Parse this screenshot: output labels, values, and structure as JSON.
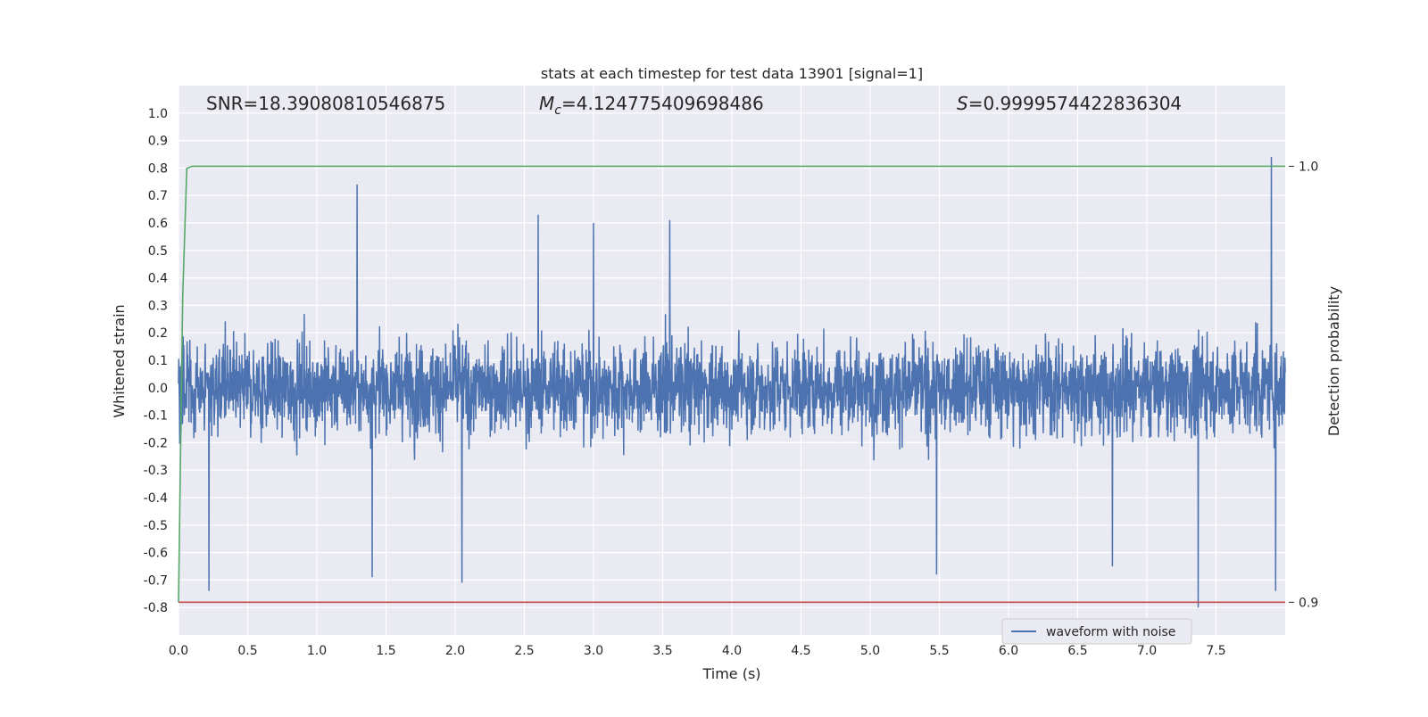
{
  "chart_data": {
    "type": "line",
    "title": "stats at each timestep for test data 13901 [signal=1]",
    "xlabel": "Time (s)",
    "ylabel": "Whitened strain",
    "y2label": "Detection probability",
    "xlim": [
      0.0,
      8.0
    ],
    "ylim": [
      -0.9,
      1.1
    ],
    "y2lim": [
      0.8925,
      1.0185
    ],
    "x_ticks": [
      0.0,
      0.5,
      1.0,
      1.5,
      2.0,
      2.5,
      3.0,
      3.5,
      4.0,
      4.5,
      5.0,
      5.5,
      6.0,
      6.5,
      7.0,
      7.5
    ],
    "x_tick_labels": [
      "0.0",
      "0.5",
      "1.0",
      "1.5",
      "2.0",
      "2.5",
      "3.0",
      "3.5",
      "4.0",
      "4.5",
      "5.0",
      "5.5",
      "6.0",
      "6.5",
      "7.0",
      "7.5"
    ],
    "y_ticks": [
      1.0,
      0.9,
      0.8,
      0.7,
      0.6,
      0.5,
      0.4,
      0.3,
      0.2,
      0.1,
      0.0,
      -0.1,
      -0.2,
      -0.3,
      -0.4,
      -0.5,
      -0.6,
      -0.7,
      -0.8
    ],
    "y_tick_labels": [
      "1.0",
      "0.9",
      "0.8",
      "0.7",
      "0.6",
      "0.5",
      "0.4",
      "0.3",
      "0.2",
      "0.1",
      "0.0",
      "-0.1",
      "-0.2",
      "-0.3",
      "-0.4",
      "-0.5",
      "-0.6",
      "-0.7",
      "-0.8"
    ],
    "y2_ticks": [
      1.0,
      0.9
    ],
    "y2_tick_labels": [
      "1.0",
      "0.9"
    ],
    "grid": true,
    "legend_placement": "bottom-right",
    "series": [
      {
        "name": "waveform with noise",
        "axis": "left",
        "color": "#4c72b0",
        "kind": "dense-noise",
        "x_range": [
          0.0,
          8.0
        ],
        "typical_amplitude": 0.4,
        "extremes": [
          {
            "x": 0.22,
            "y": -0.74
          },
          {
            "x": 1.29,
            "y": 0.74
          },
          {
            "x": 1.4,
            "y": -0.69
          },
          {
            "x": 2.05,
            "y": -0.71
          },
          {
            "x": 2.6,
            "y": 0.63
          },
          {
            "x": 3.0,
            "y": 0.6
          },
          {
            "x": 3.55,
            "y": 0.61
          },
          {
            "x": 5.48,
            "y": -0.68
          },
          {
            "x": 6.75,
            "y": -0.65
          },
          {
            "x": 7.37,
            "y": -0.8
          },
          {
            "x": 7.9,
            "y": 0.84
          },
          {
            "x": 7.93,
            "y": -0.74
          }
        ]
      },
      {
        "name": "",
        "axis": "right",
        "color": "#55a868",
        "kind": "line",
        "x": [
          0.0,
          0.03,
          0.06,
          0.1,
          0.15,
          1.0,
          2.0,
          3.0,
          4.0,
          5.0,
          6.0,
          7.0,
          8.0
        ],
        "y": [
          0.9,
          0.97,
          0.9995,
          1.0,
          1.0,
          1.0,
          1.0,
          1.0,
          1.0,
          1.0,
          1.0,
          1.0,
          1.0
        ]
      },
      {
        "name": "",
        "axis": "right",
        "color": "#c44e52",
        "kind": "line",
        "x": [
          0.0,
          8.0
        ],
        "y": [
          0.9,
          0.9
        ]
      }
    ],
    "annotations": {
      "snr": "SNR=18.39080810546875",
      "mc_symbol": "M",
      "mc_sub": "c",
      "mc_value": "=4.124775409698486",
      "s_symbol": "S",
      "s_value": "=0.9999574422836304"
    },
    "colors": {
      "axes_bg": "#eaeaf2",
      "grid": "#ffffff",
      "text": "#262626"
    }
  }
}
